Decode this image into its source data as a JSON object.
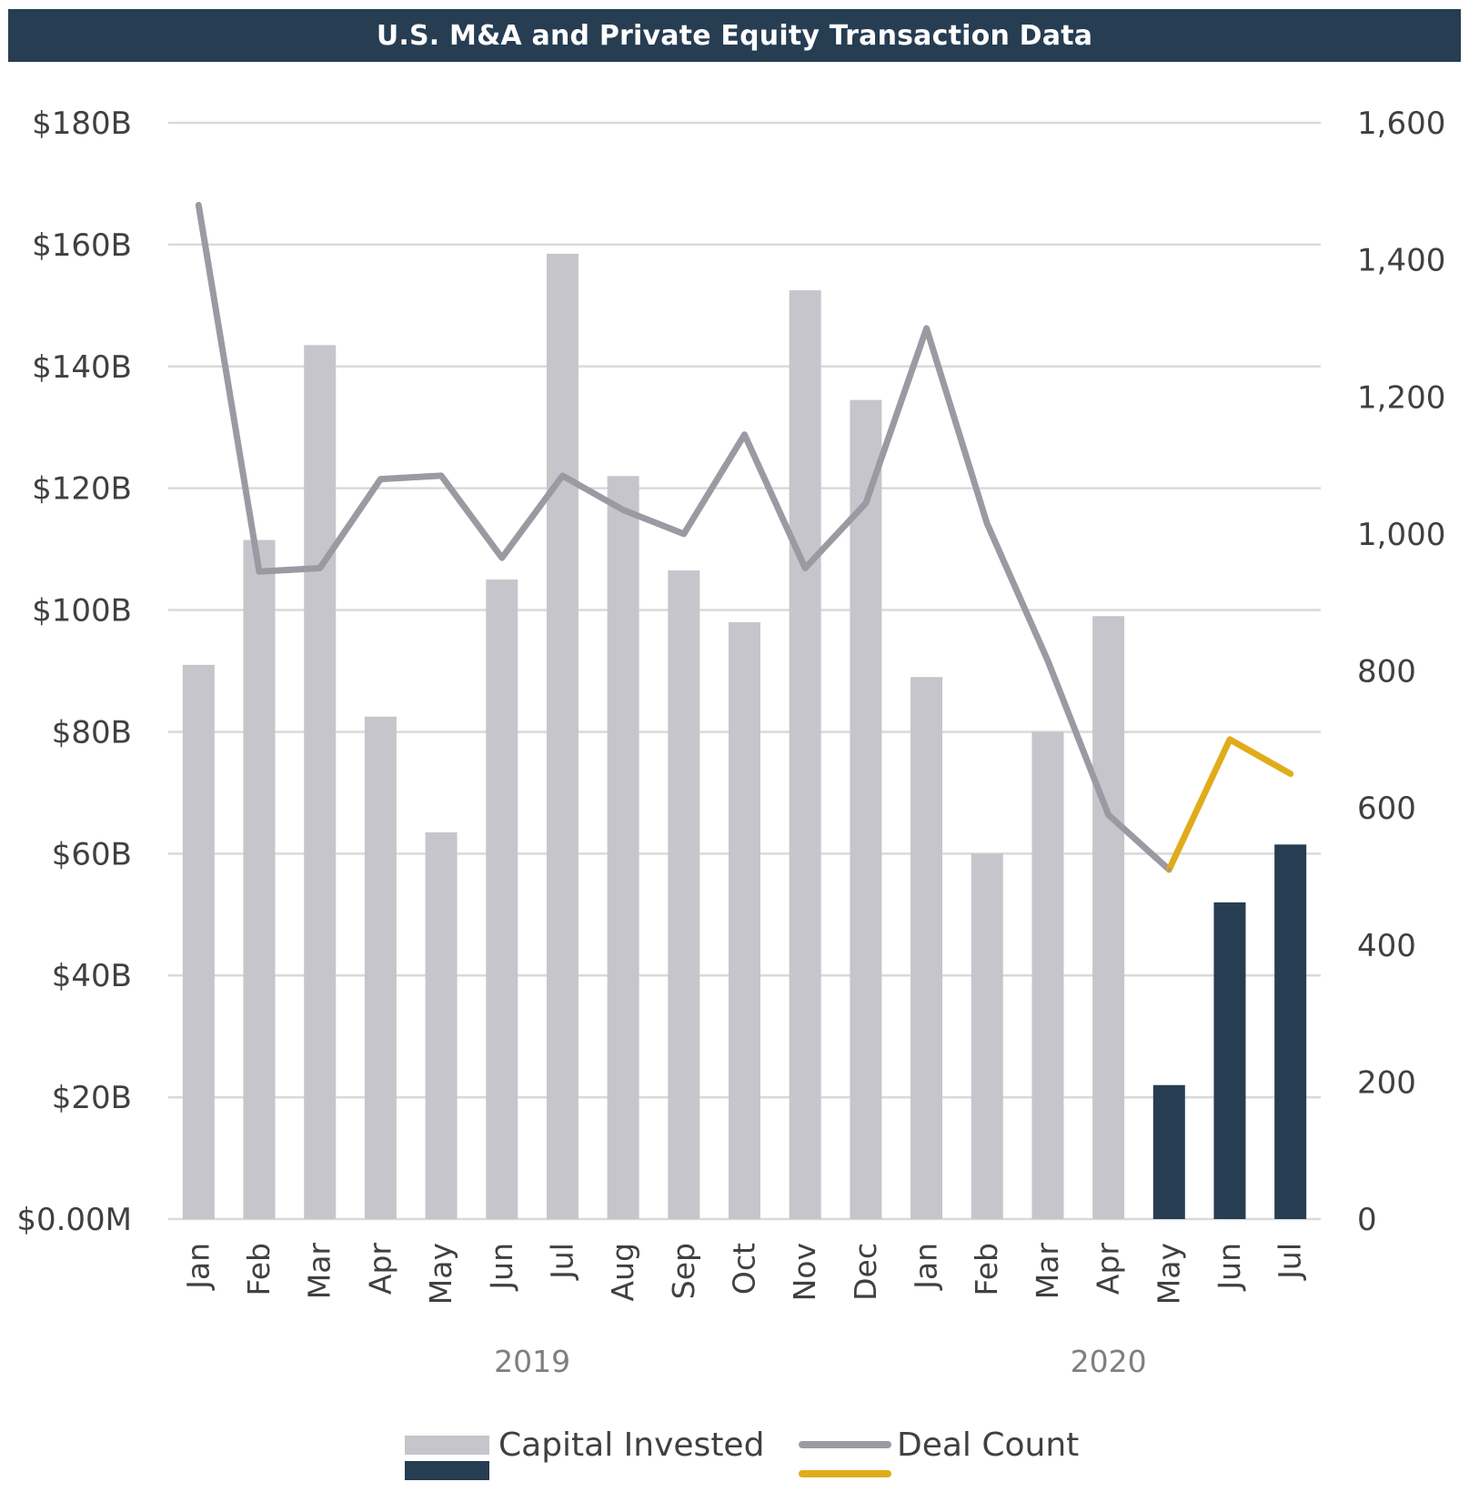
{
  "title": "U.S. M&A and Private Equity Transaction Data",
  "colors": {
    "banner": "#263d52",
    "bar_actual": "#c5c5cb",
    "bar_highlight": "#263d52",
    "line_actual": "#9a9aa2",
    "line_highlight": "#e0ac1b",
    "grid": "#d9d9d9",
    "text": "#404040",
    "year_text": "#7f7f7f"
  },
  "chart_data": {
    "type": "bar",
    "categories": [
      "Jan",
      "Feb",
      "Mar",
      "Apr",
      "May",
      "Jun",
      "Jul",
      "Aug",
      "Sep",
      "Oct",
      "Nov",
      "Dec",
      "Jan",
      "Feb",
      "Mar",
      "Apr",
      "May",
      "Jun",
      "Jul"
    ],
    "year_groups": [
      {
        "label": "2019",
        "from": 0,
        "to": 11
      },
      {
        "label": "2020",
        "from": 12,
        "to": 18
      }
    ],
    "series": [
      {
        "name": "Capital Invested",
        "type": "bar",
        "axis": "left",
        "values": [
          91,
          111.5,
          143.5,
          82.5,
          63.5,
          105,
          158.5,
          122,
          106.5,
          98,
          152.5,
          134.5,
          89,
          60,
          80,
          99,
          22,
          52,
          61.5
        ],
        "highlight_from_index": 16
      },
      {
        "name": "Deal Count",
        "type": "line",
        "axis": "right",
        "values": [
          1480,
          945,
          950,
          1080,
          1085,
          965,
          1085,
          1035,
          1000,
          1145,
          950,
          1045,
          1300,
          1015,
          815,
          590,
          510,
          700,
          650
        ],
        "highlight_from_index": 16
      }
    ],
    "left_axis": {
      "ylim": [
        0,
        180
      ],
      "ticks": [
        0,
        20,
        40,
        60,
        80,
        100,
        120,
        140,
        160,
        180
      ],
      "tick_labels": [
        "$0.00M",
        "$20B",
        "$40B",
        "$60B",
        "$80B",
        "$100B",
        "$120B",
        "$140B",
        "$160B",
        "$180B"
      ]
    },
    "right_axis": {
      "ylim": [
        0,
        1600
      ],
      "ticks": [
        0,
        200,
        400,
        600,
        800,
        1000,
        1200,
        1400,
        1600
      ],
      "tick_labels": [
        "0",
        "200",
        "400",
        "600",
        "800",
        "1,000",
        "1,200",
        "1,400",
        "1,600"
      ]
    },
    "legend": {
      "position": "bottom",
      "entries": [
        "Capital Invested",
        "Deal Count"
      ]
    },
    "grid": true
  }
}
